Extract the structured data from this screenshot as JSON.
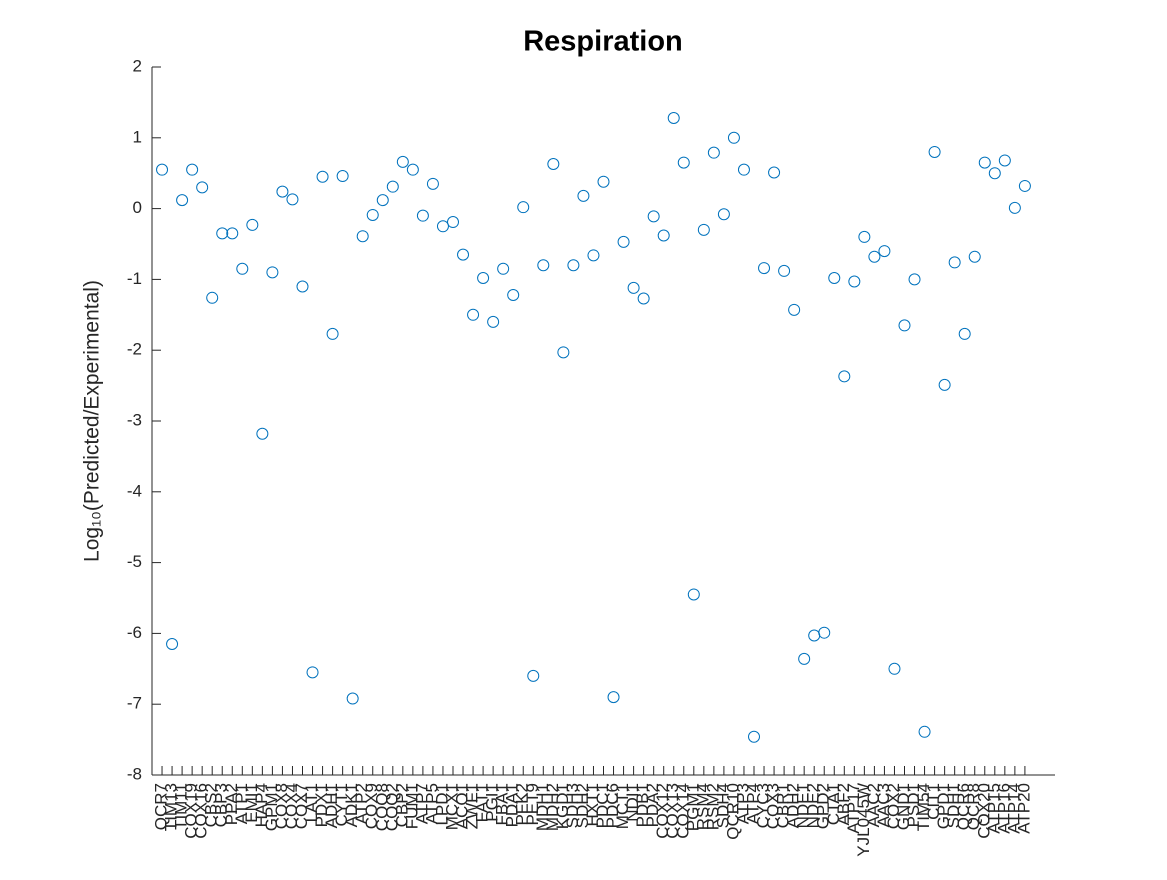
{
  "chart_data": {
    "type": "scatter",
    "title": "Respiration",
    "y_label": "Log₁₀(Predicted/Experimental)",
    "categories": [
      "QCR7",
      "TIM13",
      "TIM11",
      "COX19",
      "COX16",
      "CBS2",
      "CBP3",
      "PPA2",
      "ATP1",
      "EMI1",
      "HAP4",
      "GPM1",
      "COX8",
      "COX4",
      "COX7",
      "LAT1",
      "PDX1",
      "ADH1",
      "CYT1",
      "ADK1",
      "ATP2",
      "COX9",
      "COQ8",
      "COQ2",
      "CBP2",
      "FUM1",
      "ATP7",
      "ATP5",
      "LPD1",
      "MCX1",
      "ACO1",
      "ZWF1",
      "FAT1",
      "PGI1",
      "FBA1",
      "PDA1",
      "PFK2",
      "PET9",
      "MDH1",
      "MDH2",
      "KGD1",
      "SDH3",
      "SDH2",
      "HXT1",
      "PDC1",
      "PDC6",
      "MCT1",
      "NDI1",
      "PDB1",
      "PDA2",
      "COX12",
      "COX13",
      "COX14",
      "PGM1",
      "RSM4",
      "RSM2",
      "SDH4",
      "QCR10",
      "ATP3",
      "ATP4",
      "CYC3",
      "COX3",
      "CBR1",
      "ADH2",
      "NDE1",
      "NDE2",
      "GPD2",
      "CTA1",
      "ABF2",
      "ATP17",
      "YJL045W",
      "AAC2",
      "AAC3",
      "COX2",
      "GND1",
      "PSD1",
      "TIM54",
      "CIT1",
      "GPD1",
      "SDH1",
      "QCR6",
      "QCR8",
      "COX20",
      "ATP15",
      "ATP16",
      "ATP14",
      "ATP20"
    ],
    "values": [
      0.55,
      -6.15,
      0.12,
      0.55,
      0.3,
      -1.26,
      -0.35,
      -0.35,
      -0.85,
      -0.23,
      -3.18,
      -0.9,
      0.24,
      0.13,
      -1.1,
      -6.55,
      0.45,
      -1.77,
      0.46,
      -6.92,
      -0.39,
      -0.09,
      0.12,
      0.31,
      0.66,
      0.55,
      -0.1,
      0.35,
      -0.25,
      -0.19,
      -0.65,
      -1.5,
      -0.98,
      -1.6,
      -0.85,
      -1.22,
      0.02,
      -6.6,
      -0.8,
      0.63,
      -2.03,
      -0.8,
      0.18,
      -0.66,
      0.38,
      -6.9,
      -0.47,
      -1.12,
      -1.27,
      -0.11,
      -0.38,
      1.28,
      0.65,
      -5.45,
      -0.3,
      0.79,
      -0.08,
      1.0,
      0.55,
      -7.46,
      -0.84,
      0.51,
      -0.88,
      -1.43,
      -6.36,
      -6.03,
      -5.99,
      -0.98,
      -2.37,
      -1.03,
      -0.4,
      -0.68,
      -0.6,
      -6.5,
      -1.65,
      -1.0,
      -7.39,
      0.8,
      -2.49,
      -0.76,
      -1.77,
      -0.68,
      0.65,
      0.5,
      0.68,
      0.01,
      0.32
    ],
    "color": "#0072BD",
    "ylim": [
      -8,
      2
    ],
    "yticks": [
      -8,
      -7,
      -6,
      -5,
      -4,
      -3,
      -2,
      -1,
      0,
      1,
      2
    ]
  }
}
